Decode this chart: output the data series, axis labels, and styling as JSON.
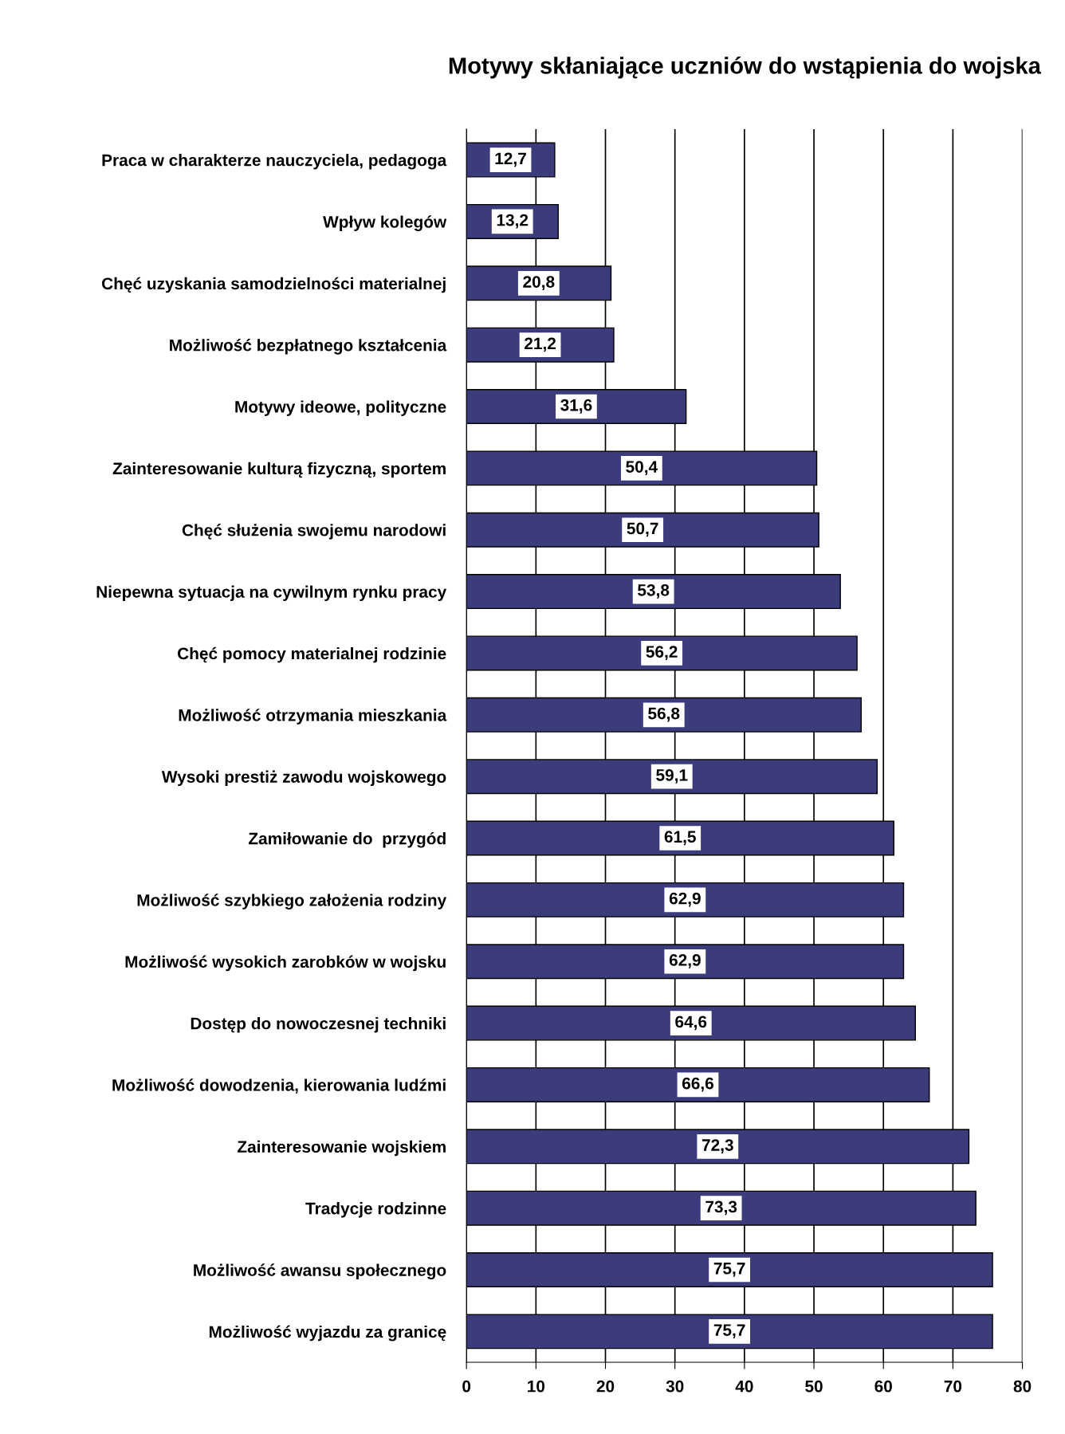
{
  "chart_data": {
    "type": "bar",
    "orientation": "horizontal",
    "title": "Motywy skłaniające uczniów do wstąpienia do wojska",
    "categories": [
      "Praca w charakterze nauczyciela, pedagoga",
      "Wpływ kolegów",
      "Chęć uzyskania samodzielności materialnej",
      "Możliwość bezpłatnego kształcenia",
      "Motywy ideowe, polityczne",
      "Zainteresowanie kulturą fizyczną, sportem",
      "Chęć służenia swojemu narodowi",
      "Niepewna sytuacja na cywilnym rynku pracy",
      "Chęć pomocy materialnej rodzinie",
      "Możliwość otrzymania mieszkania",
      "Wysoki prestiż zawodu wojskowego",
      "Zamiłowanie do  przygód",
      "Możliwość szybkiego założenia rodziny",
      "Możliwość wysokich zarobków w wojsku",
      "Dostęp do nowoczesnej techniki",
      "Możliwość dowodzenia, kierowania ludźmi",
      "Zainteresowanie wojskiem",
      "Tradycje rodzinne",
      "Możliwość awansu społecznego",
      "Możliwość wyjazdu za granicę"
    ],
    "values": [
      12.7,
      13.2,
      20.8,
      21.2,
      31.6,
      50.4,
      50.7,
      53.8,
      56.2,
      56.8,
      59.1,
      61.5,
      62.9,
      62.9,
      64.6,
      66.6,
      72.3,
      73.3,
      75.7,
      75.7
    ],
    "value_labels": [
      "12,7",
      "13,2",
      "20,8",
      "21,2",
      "31,6",
      "50,4",
      "50,7",
      "53,8",
      "56,2",
      "56,8",
      "59,1",
      "61,5",
      "62,9",
      "62,9",
      "64,6",
      "66,6",
      "72,3",
      "73,3",
      "75,7",
      "75,7"
    ],
    "color": "#3c3c7c",
    "xlim": [
      0,
      80
    ],
    "xticks": [
      0,
      10,
      20,
      30,
      40,
      50,
      60,
      70,
      80
    ],
    "grid": "x"
  }
}
